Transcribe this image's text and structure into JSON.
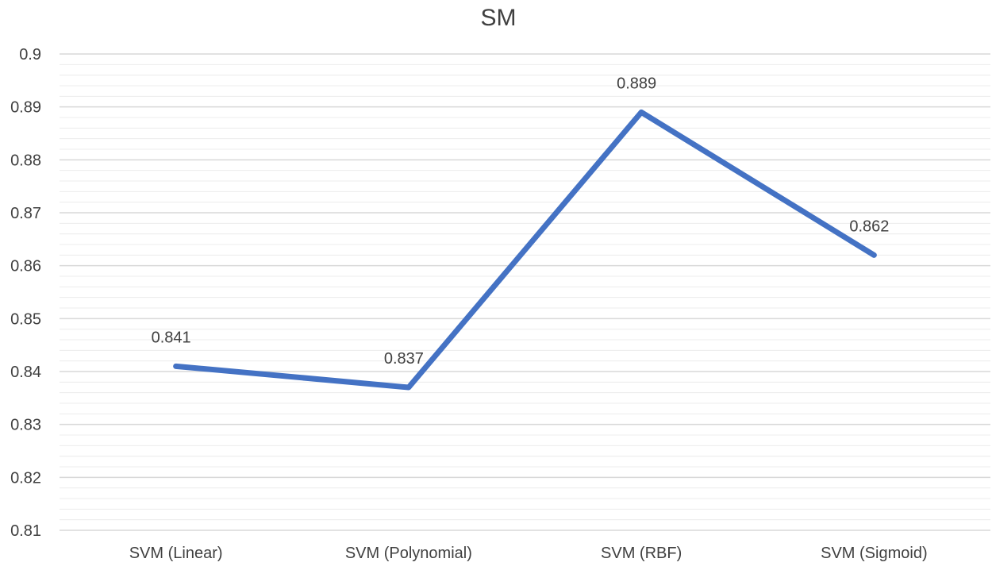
{
  "chart_data": {
    "type": "line",
    "title": "SM",
    "xlabel": "",
    "ylabel": "",
    "categories": [
      "SVM (Linear)",
      "SVM (Polynomial)",
      "SVM (RBF)",
      "SVM (Sigmoid)"
    ],
    "series": [
      {
        "values": [
          0.841,
          0.837,
          0.889,
          0.862
        ],
        "data_labels": [
          "0.841",
          "0.837",
          "0.889",
          "0.862"
        ],
        "color": "#4472C4"
      }
    ],
    "ylim": [
      0.81,
      0.9
    ],
    "y_ticks": [
      "0.81",
      "0.82",
      "0.83",
      "0.84",
      "0.85",
      "0.86",
      "0.87",
      "0.88",
      "0.89",
      "0.9"
    ],
    "grid": true,
    "legend": "none"
  }
}
